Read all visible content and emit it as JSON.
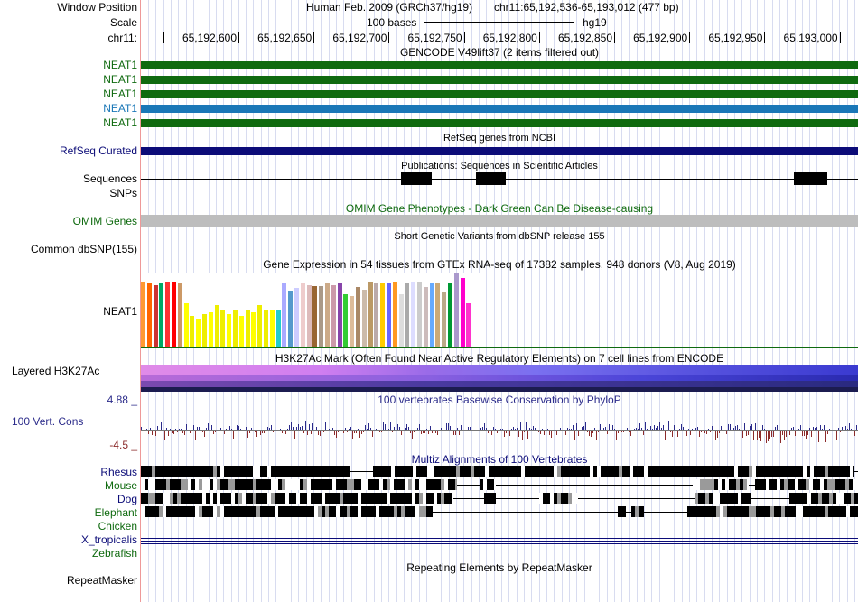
{
  "header": {
    "window_position_label": "Window Position",
    "scale_label": "Scale",
    "chrom_label": "chr11:",
    "assembly_text": "Human Feb. 2009 (GRCh37/hg19)",
    "position_text": "chr11:65,192,536-65,193,012 (477 bp)",
    "scale_text": "100 bases",
    "db_text": "hg19",
    "ruler_ticks": [
      "65,192,600",
      "65,192,650",
      "65,192,700",
      "65,192,750",
      "65,192,800",
      "65,192,850",
      "65,192,900",
      "65,192,950",
      "65,193,000"
    ]
  },
  "tracks": {
    "gencode": {
      "title": "GENCODE V49lift37 (2 items filtered out)",
      "items": [
        {
          "label": "NEAT1",
          "color": "#0f6a0f"
        },
        {
          "label": "NEAT1",
          "color": "#0f6a0f"
        },
        {
          "label": "NEAT1",
          "color": "#0f6a0f"
        },
        {
          "label": "NEAT1",
          "color": "#1a77b7"
        },
        {
          "label": "NEAT1",
          "color": "#0f6a0f"
        }
      ]
    },
    "refseq": {
      "label": "RefSeq Curated",
      "title": "RefSeq genes from NCBI",
      "color": "#0c0c78"
    },
    "pubs": {
      "label_sequences": "Sequences",
      "label_snps": "SNPs",
      "title": "Publications: Sequences in Scientific Articles"
    },
    "omim": {
      "label": "OMIM Genes",
      "title": "OMIM Gene Phenotypes - Dark Green Can Be Disease-causing",
      "color": "#0f6a0f"
    },
    "dbsnp": {
      "label": "Common dbSNP(155)",
      "title": "Short Genetic Variants from dbSNP release 155"
    },
    "gtex": {
      "label": "NEAT1",
      "title": "Gene Expression in 54 tissues from GTEx RNA-seq of 17382 samples, 948 donors (V8, Aug 2019)",
      "tissue_values": [
        72,
        70,
        68,
        70,
        72,
        72,
        70,
        48,
        34,
        31,
        36,
        38,
        46,
        41,
        36,
        40,
        34,
        40,
        38,
        46,
        40,
        40,
        40,
        70,
        62,
        65,
        70,
        68,
        67,
        67,
        70,
        68,
        70,
        58,
        56,
        66,
        63,
        72,
        70,
        70,
        70,
        72,
        58,
        70,
        72,
        72,
        66,
        70,
        70,
        60,
        70,
        82,
        76,
        48
      ],
      "tissue_colors": [
        "#ff9933",
        "#ff6600",
        "#cc3333",
        "#00aa66",
        "#ff3333",
        "#ff0000",
        "#cc9966",
        "#ffff00",
        "#eeee00",
        "#ffff00",
        "#eeee00",
        "#ffff00",
        "#eeee00",
        "#eeee00",
        "#ffff00",
        "#eeee00",
        "#ffff00",
        "#eeee00",
        "#ffff00",
        "#eeee00",
        "#eeee00",
        "#ffff00",
        "#22cccc",
        "#aaaaff",
        "#5599cc",
        "#ccccff",
        "#eecccc",
        "#ddbbbb",
        "#996633",
        "#aa9988",
        "#ccaa88",
        "#cc99aa",
        "#8844aa",
        "#33cc33",
        "#ddbb99",
        "#aa8866",
        "#ccbbaa",
        "#bb9966",
        "#bbaaaa",
        "#ffcc00",
        "#6666ff",
        "#ff9922",
        "#dddddd",
        "#aaaaaa",
        "#ddddff",
        "#cccccc",
        "#ccbbbb",
        "#66aaff",
        "#ccaa77",
        "#bbaa88",
        "#009933",
        "#aa99cc",
        "#ff00cc",
        "#ff33cc"
      ]
    },
    "h3k27ac": {
      "label": "Layered H3K27Ac",
      "title": "H3K27Ac Mark (Often Found Near Active Regulatory Elements) on 7 cell lines from ENCODE"
    },
    "phylop": {
      "label": "100 Vert. Cons",
      "title": "100 vertebrates Basewise Conservation by PhyloP",
      "max_label": "4.88 _",
      "min_label": "-4.5 _",
      "color": "#2b2b8a"
    },
    "multiz": {
      "title": "Multiz Alignments of 100 Vertebrates",
      "species": [
        {
          "label": "Rhesus",
          "color": "#0c0c78"
        },
        {
          "label": "Mouse",
          "color": "#0f6a0f"
        },
        {
          "label": "Dog",
          "color": "#0c0c78"
        },
        {
          "label": "Elephant",
          "color": "#0f6a0f"
        },
        {
          "label": "Chicken",
          "color": "#0f6a0f"
        },
        {
          "label": "X_tropicalis",
          "color": "#0c0c78"
        },
        {
          "label": "Zebrafish",
          "color": "#0f6a0f"
        }
      ]
    },
    "repeatmasker": {
      "label": "RepeatMasker",
      "title": "Repeating Elements by RepeatMasker"
    }
  }
}
